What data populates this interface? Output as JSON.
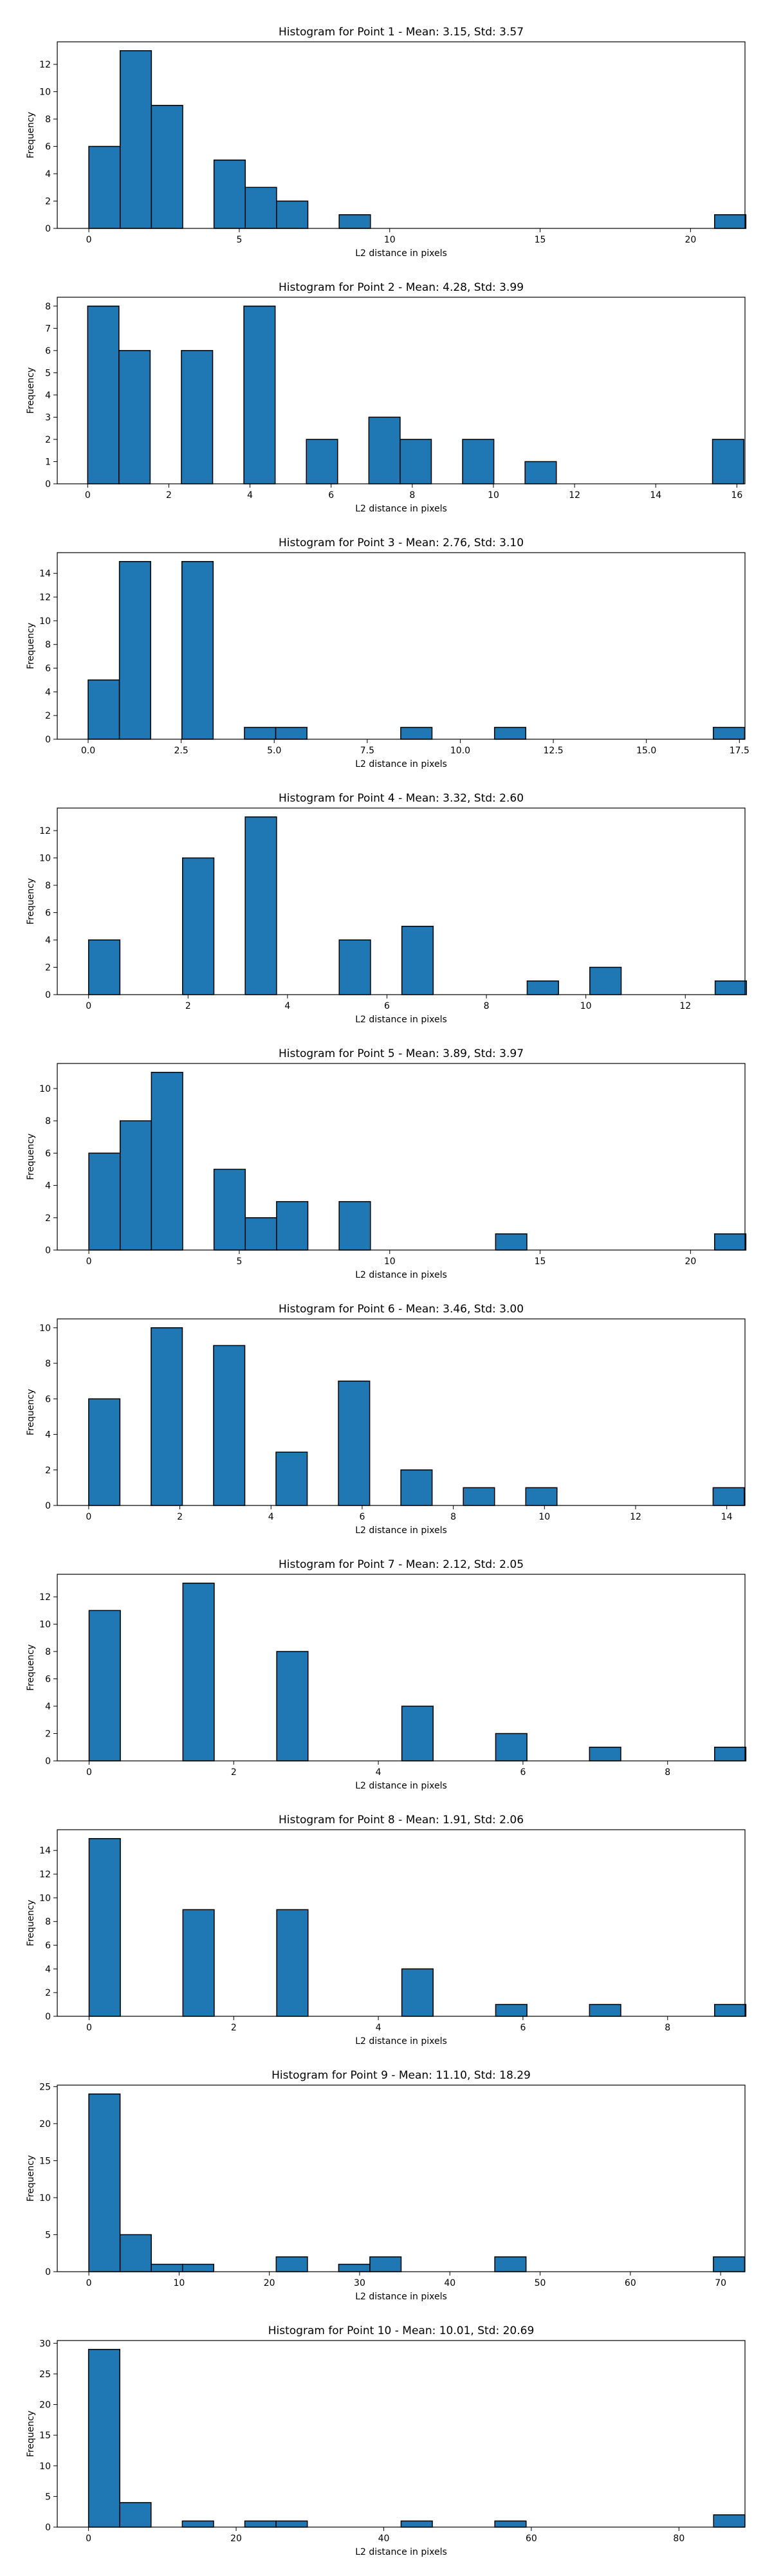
{
  "chart_data": [
    {
      "type": "bar",
      "title": "Histogram for Point 1 - Mean: 3.15, Std: 3.57",
      "xlabel": "L2 distance in pixels",
      "ylabel": "Frequency",
      "xlim": [
        -1.05,
        21.81
      ],
      "ylim": [
        0,
        13.65
      ],
      "xticks": [
        0,
        5,
        10,
        15,
        20
      ],
      "xtick_labels": [
        "0",
        "5",
        "10",
        "15",
        "20"
      ],
      "yticks": [
        0,
        2,
        4,
        6,
        8,
        10,
        12
      ],
      "ytick_labels": [
        "0",
        "2",
        "4",
        "6",
        "8",
        "10",
        "12"
      ],
      "bin_start": 0.0,
      "bin_width": 1.04,
      "values": [
        6,
        13,
        9,
        0,
        5,
        3,
        2,
        0,
        1,
        0,
        0,
        0,
        0,
        0,
        0,
        0,
        0,
        0,
        0,
        0,
        1
      ]
    },
    {
      "type": "bar",
      "title": "Histogram for Point 2 - Mean: 4.28, Std: 3.99",
      "xlabel": "L2 distance in pixels",
      "ylabel": "Frequency",
      "xlim": [
        -0.75,
        16.2
      ],
      "ylim": [
        0,
        8.4
      ],
      "xticks": [
        0,
        2,
        4,
        6,
        8,
        10,
        12,
        14,
        16
      ],
      "xtick_labels": [
        "0",
        "2",
        "4",
        "6",
        "8",
        "10",
        "12",
        "14",
        "16"
      ],
      "yticks": [
        0,
        1,
        2,
        3,
        4,
        5,
        6,
        7,
        8
      ],
      "ytick_labels": [
        "0",
        "1",
        "2",
        "3",
        "4",
        "5",
        "6",
        "7",
        "8"
      ],
      "bin_start": 0.0,
      "bin_width": 0.77,
      "values": [
        8,
        6,
        0,
        6,
        0,
        8,
        0,
        2,
        0,
        3,
        2,
        0,
        2,
        0,
        1,
        0,
        0,
        0,
        0,
        0,
        2
      ]
    },
    {
      "type": "bar",
      "title": "Histogram for Point 3 - Mean: 2.76, Std: 3.10",
      "xlabel": "L2 distance in pixels",
      "ylabel": "Frequency",
      "xlim": [
        -0.83,
        17.65
      ],
      "ylim": [
        0,
        15.75
      ],
      "xticks": [
        0,
        2.5,
        5,
        7.5,
        10,
        12.5,
        15,
        17.5
      ],
      "xtick_labels": [
        "0.0",
        "2.5",
        "5.0",
        "7.5",
        "10.0",
        "12.5",
        "15.0",
        "17.5"
      ],
      "yticks": [
        0,
        2,
        4,
        6,
        8,
        10,
        12,
        14
      ],
      "ytick_labels": [
        "0",
        "2",
        "4",
        "6",
        "8",
        "10",
        "12",
        "14"
      ],
      "bin_start": 0.0,
      "bin_width": 0.84,
      "values": [
        5,
        15,
        0,
        15,
        0,
        1,
        1,
        0,
        0,
        0,
        1,
        0,
        0,
        1,
        0,
        0,
        0,
        0,
        0,
        0,
        1
      ]
    },
    {
      "type": "bar",
      "title": "Histogram for Point 4 - Mean: 3.32, Std: 2.60",
      "xlabel": "L2 distance in pixels",
      "ylabel": "Frequency",
      "xlim": [
        -0.63,
        13.2
      ],
      "ylim": [
        0,
        13.65
      ],
      "xticks": [
        0,
        2,
        4,
        6,
        8,
        10,
        12
      ],
      "xtick_labels": [
        "0",
        "2",
        "4",
        "6",
        "8",
        "10",
        "12"
      ],
      "yticks": [
        0,
        2,
        4,
        6,
        8,
        10,
        12
      ],
      "ytick_labels": [
        "0",
        "2",
        "4",
        "6",
        "8",
        "10",
        "12"
      ],
      "bin_start": 0.0,
      "bin_width": 0.63,
      "values": [
        4,
        0,
        0,
        10,
        0,
        13,
        0,
        0,
        4,
        0,
        5,
        0,
        0,
        0,
        1,
        0,
        2,
        0,
        0,
        0,
        1
      ]
    },
    {
      "type": "bar",
      "title": "Histogram for Point 5 - Mean: 3.89, Std: 3.97",
      "xlabel": "L2 distance in pixels",
      "ylabel": "Frequency",
      "xlim": [
        -1.05,
        21.81
      ],
      "ylim": [
        0,
        11.55
      ],
      "xticks": [
        0,
        5,
        10,
        15,
        20
      ],
      "xtick_labels": [
        "0",
        "5",
        "10",
        "15",
        "20"
      ],
      "yticks": [
        0,
        2,
        4,
        6,
        8,
        10
      ],
      "ytick_labels": [
        "0",
        "2",
        "4",
        "6",
        "8",
        "10"
      ],
      "bin_start": 0.0,
      "bin_width": 1.04,
      "values": [
        6,
        8,
        11,
        0,
        5,
        2,
        3,
        0,
        3,
        0,
        0,
        0,
        0,
        1,
        0,
        0,
        0,
        0,
        0,
        0,
        1
      ]
    },
    {
      "type": "bar",
      "title": "Histogram for Point 6 - Mean: 3.46, Std: 3.00",
      "xlabel": "L2 distance in pixels",
      "ylabel": "Frequency",
      "xlim": [
        -0.69,
        14.4
      ],
      "ylim": [
        0,
        10.5
      ],
      "xticks": [
        0,
        2,
        4,
        6,
        8,
        10,
        12,
        14
      ],
      "xtick_labels": [
        "0",
        "2",
        "4",
        "6",
        "8",
        "10",
        "12",
        "14"
      ],
      "yticks": [
        0,
        2,
        4,
        6,
        8,
        10
      ],
      "ytick_labels": [
        "0",
        "2",
        "4",
        "6",
        "8",
        "10"
      ],
      "bin_start": 0.0,
      "bin_width": 0.685,
      "values": [
        6,
        0,
        10,
        0,
        9,
        0,
        3,
        0,
        7,
        0,
        2,
        0,
        1,
        0,
        1,
        0,
        0,
        0,
        0,
        0,
        1
      ]
    },
    {
      "type": "bar",
      "title": "Histogram for Point 7 - Mean: 2.12, Std: 2.05",
      "xlabel": "L2 distance in pixels",
      "ylabel": "Frequency",
      "xlim": [
        -0.44,
        9.07
      ],
      "ylim": [
        0,
        13.65
      ],
      "xticks": [
        0,
        2,
        4,
        6,
        8
      ],
      "xtick_labels": [
        "0",
        "2",
        "4",
        "6",
        "8"
      ],
      "yticks": [
        0,
        2,
        4,
        6,
        8,
        10,
        12
      ],
      "ytick_labels": [
        "0",
        "2",
        "4",
        "6",
        "8",
        "10",
        "12"
      ],
      "bin_start": 0.0,
      "bin_width": 0.4325,
      "values": [
        11,
        0,
        0,
        13,
        0,
        0,
        8,
        0,
        0,
        0,
        4,
        0,
        0,
        2,
        0,
        0,
        1,
        0,
        0,
        0,
        1
      ]
    },
    {
      "type": "bar",
      "title": "Histogram for Point 8 - Mean: 1.91, Std: 2.06",
      "xlabel": "L2 distance in pixels",
      "ylabel": "Frequency",
      "xlim": [
        -0.44,
        9.07
      ],
      "ylim": [
        0,
        15.75
      ],
      "xticks": [
        0,
        2,
        4,
        6,
        8
      ],
      "xtick_labels": [
        "0",
        "2",
        "4",
        "6",
        "8"
      ],
      "yticks": [
        0,
        2,
        4,
        6,
        8,
        10,
        12,
        14
      ],
      "ytick_labels": [
        "0",
        "2",
        "4",
        "6",
        "8",
        "10",
        "12",
        "14"
      ],
      "bin_start": 0.0,
      "bin_width": 0.4325,
      "values": [
        15,
        0,
        0,
        9,
        0,
        0,
        9,
        0,
        0,
        0,
        4,
        0,
        0,
        1,
        0,
        0,
        1,
        0,
        0,
        0,
        1
      ]
    },
    {
      "type": "bar",
      "title": "Histogram for Point 9 - Mean: 11.10, Std: 18.29",
      "xlabel": "L2 distance in pixels",
      "ylabel": "Frequency",
      "xlim": [
        -3.5,
        72.7
      ],
      "ylim": [
        0,
        25.2
      ],
      "xticks": [
        0,
        10,
        20,
        30,
        40,
        50,
        60,
        70
      ],
      "xtick_labels": [
        "0",
        "10",
        "20",
        "30",
        "40",
        "50",
        "60",
        "70"
      ],
      "yticks": [
        0,
        5,
        10,
        15,
        20,
        25
      ],
      "ytick_labels": [
        "0",
        "5",
        "10",
        "15",
        "20",
        "25"
      ],
      "bin_start": 0.0,
      "bin_width": 3.46,
      "values": [
        24,
        5,
        1,
        1,
        0,
        0,
        2,
        0,
        1,
        2,
        0,
        0,
        0,
        2,
        0,
        0,
        0,
        0,
        0,
        0,
        2
      ]
    },
    {
      "type": "bar",
      "title": "Histogram for Point 10 - Mean: 10.01, Std: 20.69",
      "xlabel": "L2 distance in pixels",
      "ylabel": "Frequency",
      "xlim": [
        -4.24,
        88.95
      ],
      "ylim": [
        0,
        30.45
      ],
      "xticks": [
        0,
        20,
        40,
        60,
        80
      ],
      "xtick_labels": [
        "0",
        "20",
        "40",
        "60",
        "80"
      ],
      "yticks": [
        0,
        5,
        10,
        15,
        20,
        25,
        30
      ],
      "ytick_labels": [
        "0",
        "5",
        "10",
        "15",
        "20",
        "25",
        "30"
      ],
      "bin_start": 0.0,
      "bin_width": 4.235,
      "values": [
        29,
        4,
        0,
        1,
        0,
        1,
        1,
        0,
        0,
        0,
        1,
        0,
        0,
        1,
        0,
        0,
        0,
        0,
        0,
        0,
        2
      ]
    }
  ],
  "colors": {
    "bar_fill": "#1f77b4",
    "bar_edge": "#000000",
    "axes": "#000000",
    "background": "#ffffff"
  }
}
